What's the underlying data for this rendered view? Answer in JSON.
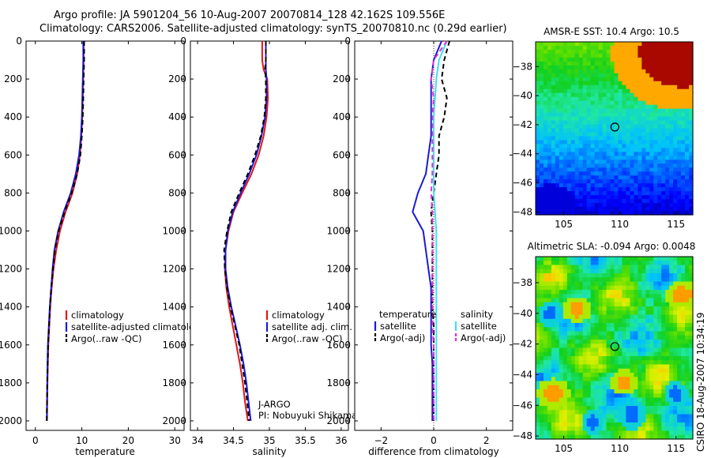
{
  "header": {
    "line1": "Argo profile: JA 5901204_56 10-Aug-2007 20070814_128 42.162S 109.556E",
    "line2": "Climatology: CARS2006. Satellite-adjusted climatology: synTS_20070810.nc (0.29d earlier)"
  },
  "credit": "CSIRO 18-Aug-2007 10:34:19",
  "colors": {
    "red": "#e0161b",
    "blue": "#1a1ad9",
    "black": "#000000",
    "cyan": "#3fe0f0",
    "magenta": "#e030d0"
  },
  "chart_data": [
    {
      "type": "line",
      "id": "temperature",
      "xlabel": "temperature",
      "xlim": [
        -2,
        32
      ],
      "ylim": [
        2050,
        0
      ],
      "xticks": [
        0,
        10,
        20,
        30
      ],
      "yticks": [
        0,
        200,
        400,
        600,
        800,
        1000,
        1200,
        1400,
        1600,
        1800,
        2000
      ],
      "depth": [
        0,
        100,
        200,
        300,
        400,
        500,
        600,
        700,
        800,
        900,
        1000,
        1100,
        1200,
        1300,
        1400,
        1500,
        1600,
        1700,
        1800,
        1900,
        2000
      ],
      "series": [
        {
          "name": "climatology",
          "color": "red",
          "values": [
            10.4,
            10.4,
            10.3,
            10.2,
            10.1,
            9.9,
            9.6,
            9.0,
            8.0,
            6.5,
            5.3,
            4.5,
            3.9,
            3.5,
            3.2,
            3.0,
            2.8,
            2.7,
            2.6,
            2.55,
            2.5
          ]
        },
        {
          "name": "satellite-adjusted climatology",
          "color": "blue",
          "values": [
            10.3,
            10.3,
            10.2,
            10.1,
            10.0,
            9.8,
            9.4,
            8.7,
            7.6,
            6.1,
            4.9,
            4.1,
            3.7,
            3.4,
            3.1,
            2.9,
            2.7,
            2.6,
            2.55,
            2.5,
            2.45
          ]
        },
        {
          "name": "Argo(..raw -QC)",
          "color": "black",
          "dash": true,
          "values": [
            10.5,
            10.5,
            10.4,
            10.3,
            10.2,
            10.0,
            9.7,
            9.0,
            7.8,
            6.3,
            5.0,
            4.2,
            3.8,
            3.4,
            3.15,
            2.95,
            2.75,
            2.65,
            2.55,
            2.5,
            2.45
          ]
        }
      ],
      "legend": {
        "position": "lower-right",
        "entries": [
          "climatology",
          "satellite-adjusted climatology",
          "Argo(..raw -QC)"
        ]
      }
    },
    {
      "type": "line",
      "id": "salinity",
      "xlabel": "salinity",
      "xlim": [
        33.9,
        36.1
      ],
      "ylim": [
        2050,
        0
      ],
      "xticks": [
        34,
        34.5,
        35,
        35.5,
        36
      ],
      "yticks": [
        0,
        200,
        400,
        600,
        800,
        1000,
        1200,
        1400,
        1600,
        1800,
        2000
      ],
      "depth": [
        0,
        100,
        150,
        200,
        300,
        400,
        500,
        600,
        700,
        800,
        900,
        1000,
        1100,
        1200,
        1300,
        1400,
        1500,
        1600,
        1700,
        1800,
        1900,
        2000
      ],
      "series": [
        {
          "name": "climatology",
          "color": "red",
          "values": [
            34.9,
            34.9,
            34.92,
            34.97,
            34.98,
            34.96,
            34.92,
            34.85,
            34.75,
            34.62,
            34.5,
            34.43,
            34.39,
            34.38,
            34.4,
            34.44,
            34.49,
            34.54,
            34.59,
            34.63,
            34.66,
            34.7
          ]
        },
        {
          "name": "satellite adj. clim.",
          "color": "blue",
          "values": [
            34.95,
            34.95,
            34.95,
            34.96,
            34.96,
            34.94,
            34.89,
            34.82,
            34.72,
            34.6,
            34.49,
            34.42,
            34.39,
            34.39,
            34.42,
            34.47,
            34.53,
            34.59,
            34.64,
            34.68,
            34.71,
            34.74
          ]
        },
        {
          "name": "Argo(..raw -QC)",
          "color": "black",
          "dash": true,
          "values": [
            34.95,
            34.95,
            34.94,
            34.95,
            34.95,
            34.93,
            34.88,
            34.8,
            34.7,
            34.58,
            34.47,
            34.41,
            34.37,
            34.38,
            34.41,
            34.46,
            34.52,
            34.58,
            34.62,
            34.66,
            34.69,
            34.72
          ]
        }
      ],
      "legend": {
        "position": "lower-right",
        "entries": [
          "climatology",
          "satellite adj. clim.",
          "Argo(..raw -QC)"
        ]
      },
      "annotation": [
        "J-ARGO",
        "PI: Nobuyuki Shikama"
      ]
    },
    {
      "type": "line",
      "id": "difference",
      "xlabel": "difference from climatology",
      "xlim": [
        -3,
        3
      ],
      "ylim": [
        2050,
        0
      ],
      "xticks": [
        -2,
        0,
        2
      ],
      "yticks": [
        0,
        200,
        400,
        600,
        800,
        1000,
        1200,
        1400,
        1600,
        1800,
        2000
      ],
      "depth": [
        0,
        100,
        200,
        300,
        400,
        500,
        600,
        700,
        800,
        900,
        1000,
        1100,
        1200,
        1300,
        1400,
        1500,
        1600,
        1700,
        1800,
        1900,
        2000
      ],
      "series": [
        {
          "name": "temperature satellite",
          "color": "blue",
          "values": [
            0.3,
            0.0,
            -0.1,
            -0.1,
            -0.1,
            -0.1,
            -0.2,
            -0.3,
            -0.6,
            -0.8,
            -0.4,
            -0.3,
            -0.2,
            -0.1,
            -0.1,
            -0.1,
            -0.1,
            -0.05,
            -0.05,
            -0.05,
            -0.05
          ]
        },
        {
          "name": "temperature Argo(-adj)",
          "color": "black",
          "dash": true,
          "values": [
            0.6,
            0.4,
            0.3,
            0.5,
            0.4,
            0.2,
            0.2,
            0.1,
            0.0,
            -0.1,
            -0.05,
            -0.05,
            -0.05,
            -0.05,
            -0.05,
            0.0,
            0.0,
            0.0,
            0.0,
            0.0,
            0.0
          ]
        },
        {
          "name": "salinity satellite",
          "color": "cyan",
          "values": [
            0.5,
            0.2,
            0.1,
            0.05,
            0.0,
            0.0,
            0.0,
            0.0,
            0.0,
            0.05,
            0.1,
            0.1,
            0.1,
            0.1,
            0.1,
            0.1,
            0.1,
            0.1,
            0.1,
            0.1,
            0.1
          ]
        },
        {
          "name": "salinity Argo(-adj)",
          "color": "magenta",
          "dash": true,
          "values": [
            0.5,
            0.0,
            -0.1,
            0.0,
            -0.05,
            -0.05,
            -0.05,
            -0.05,
            -0.1,
            -0.05,
            -0.05,
            -0.05,
            -0.05,
            -0.05,
            -0.05,
            -0.05,
            0.0,
            0.0,
            0.0,
            0.0,
            0.0
          ]
        }
      ],
      "legend": {
        "position": "lower-right",
        "titles": [
          "temperature",
          "salinity"
        ],
        "entries": [
          "satellite",
          "Argo(-adj)",
          "satellite",
          "Argo(-adj)"
        ]
      }
    },
    {
      "type": "heatmap",
      "id": "sst-map",
      "title": "AMSR-E SST: 10.4 Argo: 10.5",
      "xlim": [
        102.5,
        116.5
      ],
      "ylim": [
        -48.2,
        -36.3
      ],
      "xticks": [
        105,
        110,
        115
      ],
      "yticks": [
        -38,
        -40,
        -42,
        -44,
        -46,
        -48
      ],
      "marker": {
        "lon": 109.556,
        "lat": -42.162
      }
    },
    {
      "type": "heatmap",
      "id": "sla-map",
      "title": "Altimetric SLA: -0.094 Argo: 0.0048",
      "xlim": [
        102.5,
        116.5
      ],
      "ylim": [
        -48.2,
        -36.3
      ],
      "xticks": [
        105,
        110,
        115
      ],
      "yticks": [
        -38,
        -40,
        -42,
        -44,
        -46,
        -48
      ],
      "marker": {
        "lon": 109.556,
        "lat": -42.162
      }
    }
  ]
}
